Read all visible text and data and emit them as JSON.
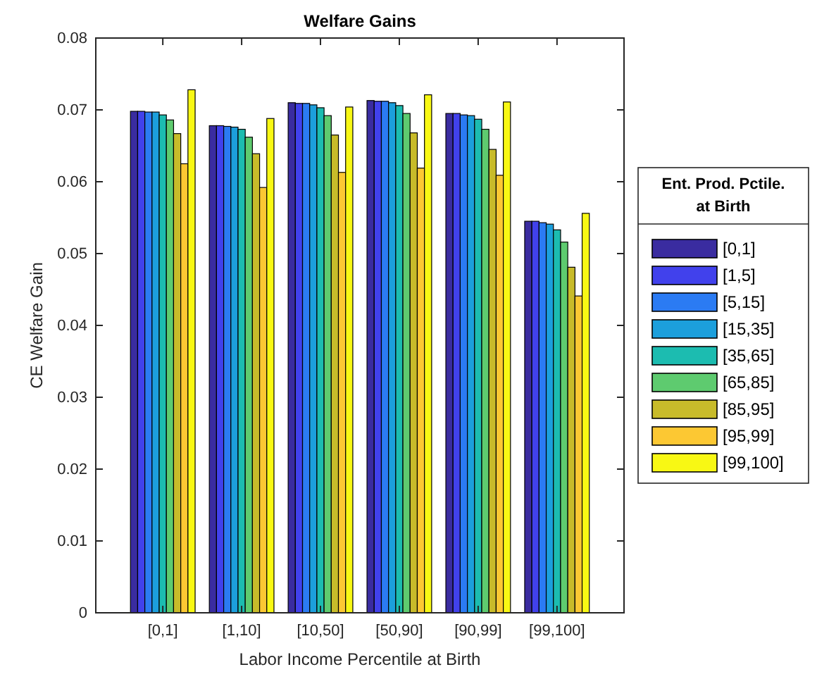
{
  "chart_data": {
    "type": "bar",
    "title": "Welfare Gains",
    "xlabel": "Labor Income Percentile at Birth",
    "ylabel": "CE Welfare Gain",
    "legend_title": "Ent. Prod. Pctile. at Birth",
    "legend": "right",
    "categories": [
      "[0,1]",
      "[1,10]",
      "[10,50]",
      "[50,90]",
      "[90,99]",
      "[99,100]"
    ],
    "ylim": [
      0,
      0.08
    ],
    "yticks": [
      0,
      0.01,
      0.02,
      0.03,
      0.04,
      0.05,
      0.06,
      0.07,
      0.08
    ],
    "series": [
      {
        "name": "[0,1]",
        "color": "#3a2ca0",
        "values": [
          0.0698,
          0.0678,
          0.071,
          0.0713,
          0.0695,
          0.0545
        ]
      },
      {
        "name": "[1,5]",
        "color": "#4141ec",
        "values": [
          0.0698,
          0.0678,
          0.0709,
          0.0712,
          0.0695,
          0.0545
        ]
      },
      {
        "name": "[5,15]",
        "color": "#2b7bf3",
        "values": [
          0.0697,
          0.0677,
          0.0709,
          0.0712,
          0.0693,
          0.0543
        ]
      },
      {
        "name": "[15,35]",
        "color": "#1c9fdc",
        "values": [
          0.0697,
          0.0676,
          0.0707,
          0.071,
          0.0692,
          0.0541
        ]
      },
      {
        "name": "[35,65]",
        "color": "#1cbcb0",
        "values": [
          0.0693,
          0.0673,
          0.0703,
          0.0706,
          0.0687,
          0.0533
        ]
      },
      {
        "name": "[65,85]",
        "color": "#5ecb6f",
        "values": [
          0.0686,
          0.0662,
          0.0692,
          0.0695,
          0.0673,
          0.0516
        ]
      },
      {
        "name": "[85,95]",
        "color": "#c8bb2a",
        "values": [
          0.0667,
          0.0639,
          0.0665,
          0.0668,
          0.0645,
          0.0481
        ]
      },
      {
        "name": "[95,99]",
        "color": "#fcc833",
        "values": [
          0.0625,
          0.0592,
          0.0613,
          0.0619,
          0.0609,
          0.0441
        ]
      },
      {
        "name": "[99,100]",
        "color": "#f8f814",
        "values": [
          0.0728,
          0.0688,
          0.0704,
          0.0721,
          0.0711,
          0.0556
        ]
      }
    ]
  }
}
